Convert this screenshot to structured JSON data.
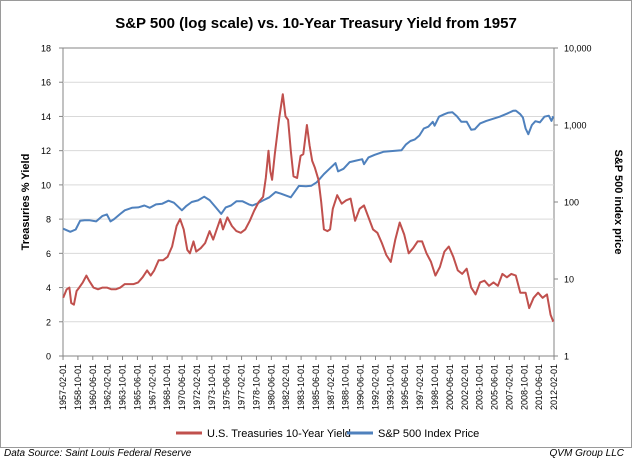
{
  "chart_data": {
    "type": "line",
    "title": "S&P 500 (log scale) vs. 10-Year Treasury Yield from 1957",
    "ylabel_left": "Treasuries % Yield",
    "ylabel_right": "S&P 500 index price",
    "ylim_left": [
      0,
      18
    ],
    "ylim_right_log": [
      1,
      10000
    ],
    "left_ticks": [
      "0",
      "2",
      "4",
      "6",
      "8",
      "10",
      "12",
      "14",
      "16",
      "18"
    ],
    "right_ticks": [
      "1",
      "10",
      "100",
      "1,000",
      "10,000"
    ],
    "xlim": [
      1957.08,
      2012.08
    ],
    "x_tick_labels": [
      "1957-02-01",
      "1958-10-01",
      "1960-06-01",
      "1962-02-01",
      "1963-10-01",
      "1965-06-01",
      "1967-02-01",
      "1968-10-01",
      "1970-06-01",
      "1972-02-01",
      "1973-10-01",
      "1975-06-01",
      "1977-02-01",
      "1978-10-01",
      "1980-06-01",
      "1982-02-01",
      "1983-10-01",
      "1985-06-01",
      "1987-02-01",
      "1988-10-01",
      "1990-06-01",
      "1992-02-01",
      "1993-10-01",
      "1995-06-01",
      "1997-02-01",
      "1998-10-01",
      "2000-06-01",
      "2002-02-01",
      "2003-10-01",
      "2005-06-01",
      "2007-02-01",
      "2008-10-01",
      "2010-06-01",
      "2012-02-01"
    ],
    "grid": true,
    "legend_position": "bottom",
    "series": [
      {
        "name": "U.S. Treasuries 10-Year Yield",
        "axis": "left",
        "color": "#c0504d",
        "x": [
          1957.1,
          1957.5,
          1957.8,
          1958.0,
          1958.3,
          1958.6,
          1958.9,
          1959.3,
          1959.7,
          1960.0,
          1960.5,
          1961.0,
          1961.5,
          1962.0,
          1962.5,
          1963.0,
          1963.5,
          1964.0,
          1964.5,
          1965.0,
          1965.5,
          1966.0,
          1966.5,
          1966.9,
          1967.3,
          1967.8,
          1968.3,
          1968.8,
          1969.3,
          1969.8,
          1970.2,
          1970.6,
          1971.0,
          1971.3,
          1971.7,
          1972.0,
          1972.5,
          1973.0,
          1973.5,
          1973.9,
          1974.3,
          1974.7,
          1975.0,
          1975.5,
          1976.0,
          1976.5,
          1977.0,
          1977.5,
          1978.0,
          1978.5,
          1979.0,
          1979.5,
          1979.8,
          1980.1,
          1980.3,
          1980.5,
          1980.8,
          1981.0,
          1981.3,
          1981.7,
          1982.0,
          1982.3,
          1982.6,
          1982.9,
          1983.3,
          1983.7,
          1984.0,
          1984.4,
          1984.7,
          1985.0,
          1985.3,
          1985.7,
          1986.0,
          1986.3,
          1986.7,
          1987.0,
          1987.3,
          1987.8,
          1988.3,
          1988.8,
          1989.3,
          1989.8,
          1990.3,
          1990.8,
          1991.3,
          1991.8,
          1992.3,
          1992.8,
          1993.3,
          1993.8,
          1994.3,
          1994.8,
          1995.3,
          1995.8,
          1996.3,
          1996.8,
          1997.3,
          1997.8,
          1998.3,
          1998.8,
          1999.3,
          1999.8,
          2000.3,
          2000.8,
          2001.3,
          2001.8,
          2002.3,
          2002.8,
          2003.3,
          2003.8,
          2004.3,
          2004.8,
          2005.3,
          2005.8,
          2006.3,
          2006.8,
          2007.3,
          2007.8,
          2008.3,
          2008.9,
          2009.3,
          2009.8,
          2010.3,
          2010.8,
          2011.3,
          2011.7,
          2012.0
        ],
        "values": [
          3.4,
          3.9,
          4.0,
          3.1,
          3.0,
          3.8,
          4.0,
          4.3,
          4.7,
          4.4,
          4.0,
          3.9,
          4.0,
          4.0,
          3.9,
          3.9,
          4.0,
          4.2,
          4.2,
          4.2,
          4.3,
          4.6,
          5.0,
          4.7,
          5.0,
          5.6,
          5.6,
          5.8,
          6.4,
          7.6,
          8.0,
          7.4,
          6.2,
          6.0,
          6.7,
          6.1,
          6.3,
          6.6,
          7.3,
          6.8,
          7.4,
          8.0,
          7.4,
          8.1,
          7.6,
          7.3,
          7.2,
          7.4,
          7.9,
          8.5,
          9.0,
          9.3,
          10.4,
          12.0,
          10.8,
          10.3,
          11.8,
          12.6,
          13.9,
          15.3,
          14.0,
          13.8,
          12.0,
          10.5,
          10.4,
          11.7,
          11.8,
          13.5,
          12.3,
          11.4,
          11.0,
          10.3,
          9.0,
          7.4,
          7.3,
          7.4,
          8.6,
          9.4,
          8.9,
          9.1,
          9.2,
          7.9,
          8.6,
          8.8,
          8.1,
          7.4,
          7.2,
          6.6,
          5.9,
          5.5,
          6.8,
          7.8,
          7.1,
          6.0,
          6.3,
          6.7,
          6.7,
          6.0,
          5.5,
          4.7,
          5.2,
          6.1,
          6.4,
          5.8,
          5.0,
          4.8,
          5.1,
          4.0,
          3.6,
          4.3,
          4.4,
          4.1,
          4.3,
          4.1,
          4.8,
          4.6,
          4.8,
          4.7,
          3.7,
          3.7,
          2.8,
          3.4,
          3.7,
          3.4,
          3.6,
          2.4,
          2.0
        ],
        "peak": {
          "x": 1981.75,
          "value": 15.3
        }
      },
      {
        "name": "S&P 500 Index Price",
        "axis": "right",
        "color": "#4f81bd",
        "x": [
          1957.1,
          1957.9,
          1958.5,
          1959.0,
          1959.5,
          1960.0,
          1960.8,
          1961.5,
          1962.0,
          1962.4,
          1962.8,
          1963.5,
          1964.0,
          1964.8,
          1965.5,
          1966.2,
          1966.8,
          1967.5,
          1968.2,
          1968.9,
          1969.5,
          1970.4,
          1970.9,
          1971.5,
          1972.2,
          1972.9,
          1973.5,
          1974.2,
          1974.8,
          1975.3,
          1975.9,
          1976.5,
          1977.2,
          1977.9,
          1978.3,
          1978.8,
          1979.5,
          1980.2,
          1980.9,
          1981.5,
          1982.6,
          1983.5,
          1984.3,
          1984.9,
          1985.5,
          1986.3,
          1987.0,
          1987.6,
          1987.9,
          1988.5,
          1989.2,
          1989.9,
          1990.6,
          1990.8,
          1991.3,
          1992.0,
          1993.0,
          1994.0,
          1995.0,
          1995.5,
          1996.0,
          1996.5,
          1997.0,
          1997.5,
          1998.0,
          1998.5,
          1998.7,
          1999.2,
          1999.8,
          2000.2,
          2000.7,
          2001.2,
          2001.7,
          2002.3,
          2002.8,
          2003.2,
          2003.8,
          2004.5,
          2005.2,
          2006.0,
          2006.8,
          2007.5,
          2007.8,
          2008.3,
          2008.6,
          2008.9,
          2009.2,
          2009.6,
          2010.0,
          2010.5,
          2011.0,
          2011.5,
          2011.8,
          2012.0
        ],
        "values": [
          45,
          41,
          44,
          57,
          58,
          58,
          56,
          66,
          69,
          56,
          60,
          70,
          78,
          84,
          85,
          90,
          84,
          93,
          95,
          104,
          98,
          78,
          89,
          100,
          105,
          117,
          106,
          85,
          70,
          85,
          90,
          102,
          102,
          93,
          90,
          95,
          105,
          115,
          135,
          128,
          115,
          162,
          160,
          163,
          180,
          230,
          275,
          320,
          250,
          270,
          330,
          345,
          360,
          310,
          380,
          410,
          450,
          460,
          470,
          560,
          620,
          650,
          730,
          900,
          950,
          1100,
          980,
          1280,
          1380,
          1440,
          1460,
          1300,
          1100,
          1100,
          870,
          880,
          1050,
          1130,
          1200,
          1280,
          1400,
          1530,
          1540,
          1380,
          1250,
          900,
          760,
          1000,
          1120,
          1080,
          1280,
          1320,
          1130,
          1300
        ]
      }
    ]
  },
  "footer": {
    "source": "Data Source: Saint Louis Federal Reserve",
    "credit": "QVM Group LLC"
  }
}
